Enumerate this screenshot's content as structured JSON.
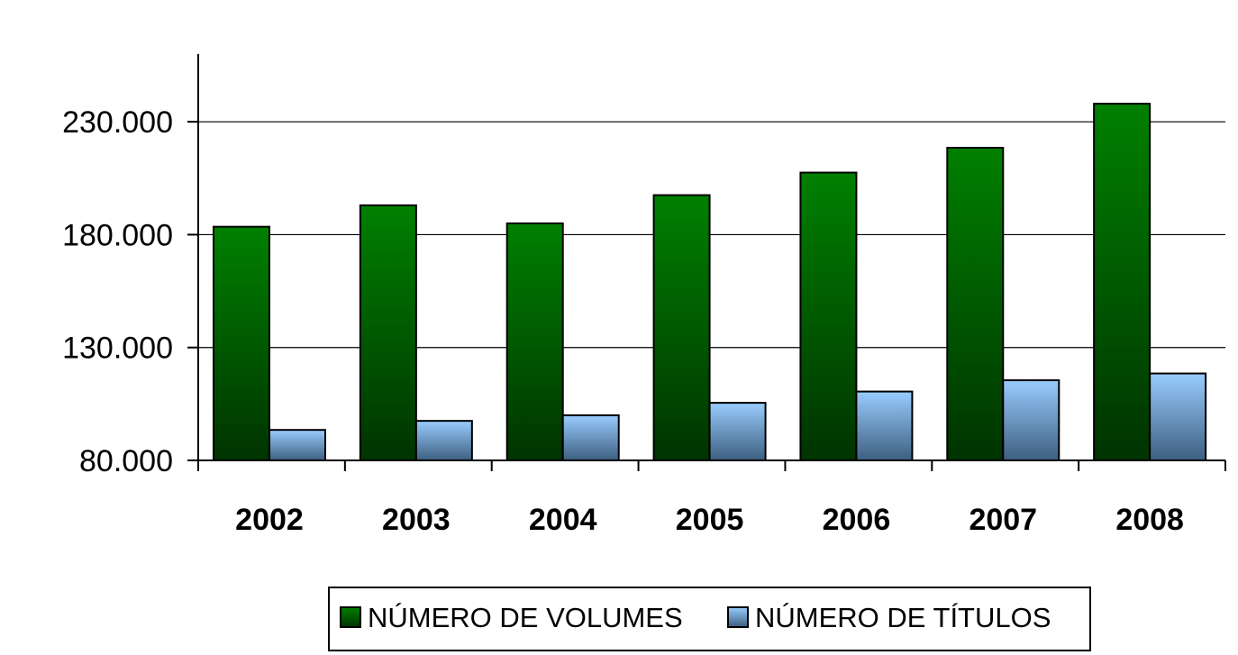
{
  "chart_data": {
    "type": "bar",
    "categories": [
      "2002",
      "2003",
      "2004",
      "2005",
      "2006",
      "2007",
      "2008"
    ],
    "series": [
      {
        "name": "NÚMERO DE VOLUMES",
        "values": [
          183500,
          193000,
          185000,
          197500,
          207500,
          218500,
          238000
        ],
        "color_top": "#008000",
        "color_bottom": "#003300"
      },
      {
        "name": "NÚMERO DE TÍTULOS",
        "values": [
          93500,
          97500,
          100000,
          105500,
          110500,
          115500,
          118500
        ],
        "color_top": "#99ccff",
        "color_bottom": "#3d5f7f"
      }
    ],
    "yticks": [
      "80.000",
      "130.000",
      "180.000",
      "230.000"
    ],
    "ytick_values": [
      80000,
      130000,
      180000,
      230000
    ],
    "ylim": [
      80000,
      260000
    ],
    "grid": true,
    "legend_position": "bottom",
    "title": "",
    "xlabel": "",
    "ylabel": ""
  }
}
